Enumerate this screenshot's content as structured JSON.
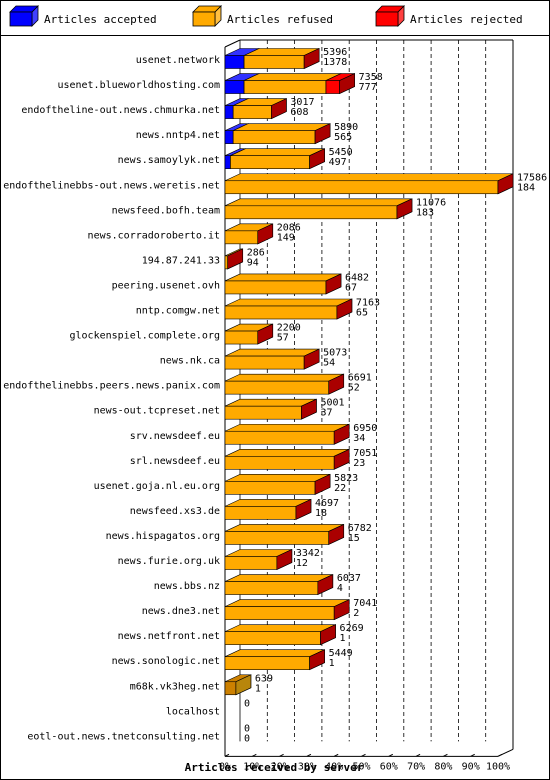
{
  "chart_data": {
    "type": "bar",
    "orientation": "horizontal",
    "stacked": true,
    "x_label": "Articles received by server",
    "x_ticks": [
      "0%",
      "10%",
      "20%",
      "30%",
      "40%",
      "50%",
      "60%",
      "70%",
      "80%",
      "90%",
      "100%"
    ],
    "legend": {
      "position": "top",
      "items": [
        {
          "name": "Articles accepted",
          "color": "#0000ff"
        },
        {
          "name": "Articles refused",
          "color": "#ffaa00"
        },
        {
          "name": "Articles rejected",
          "color": "#ff0000"
        }
      ]
    },
    "colors": {
      "accepted": "#0000ff",
      "refused": "#ffaa00",
      "rejected": "#ff0000",
      "mixed_top": "#cc8000",
      "mixed_side": "#b8860b",
      "rejected_dark": "#aa0000"
    },
    "servers": [
      {
        "name": "usenet.network",
        "total": "5396",
        "second": "1378",
        "accepted_pct": 7,
        "refused_pct": 22,
        "rejected_pct": 0
      },
      {
        "name": "usenet.blueworldhosting.com",
        "total": "7358",
        "second": "777",
        "accepted_pct": 7,
        "refused_pct": 30,
        "rejected_pct": 5
      },
      {
        "name": "endoftheline-out.news.chmurka.net",
        "total": "3017",
        "second": "608",
        "accepted_pct": 3,
        "refused_pct": 14,
        "rejected_pct": 0
      },
      {
        "name": "news.nntp4.net",
        "total": "5890",
        "second": "565",
        "accepted_pct": 3,
        "refused_pct": 30,
        "rejected_pct": 0
      },
      {
        "name": "news.samoylyk.net",
        "total": "5450",
        "second": "497",
        "accepted_pct": 2,
        "refused_pct": 29,
        "rejected_pct": 0
      },
      {
        "name": "endofthelinebbs-out.news.weretis.net",
        "total": "17586",
        "second": "184",
        "accepted_pct": 0,
        "refused_pct": 100,
        "rejected_pct": 0
      },
      {
        "name": "newsfeed.bofh.team",
        "total": "11076",
        "second": "183",
        "accepted_pct": 0,
        "refused_pct": 63,
        "rejected_pct": 0
      },
      {
        "name": "news.corradoroberto.it",
        "total": "2086",
        "second": "149",
        "accepted_pct": 0,
        "refused_pct": 12,
        "rejected_pct": 0
      },
      {
        "name": "194.87.241.33",
        "total": "286",
        "second": "94",
        "accepted_pct": 0,
        "refused_pct": 1,
        "rejected_pct": 0
      },
      {
        "name": "peering.usenet.ovh",
        "total": "6482",
        "second": "67",
        "accepted_pct": 0,
        "refused_pct": 37,
        "rejected_pct": 0
      },
      {
        "name": "nntp.comgw.net",
        "total": "7163",
        "second": "65",
        "accepted_pct": 0,
        "refused_pct": 41,
        "rejected_pct": 0
      },
      {
        "name": "glockenspiel.complete.org",
        "total": "2200",
        "second": "57",
        "accepted_pct": 0,
        "refused_pct": 12,
        "rejected_pct": 0
      },
      {
        "name": "news.nk.ca",
        "total": "5073",
        "second": "54",
        "accepted_pct": 0,
        "refused_pct": 29,
        "rejected_pct": 0
      },
      {
        "name": "endofthelinebbs.peers.news.panix.com",
        "total": "6691",
        "second": "52",
        "accepted_pct": 0,
        "refused_pct": 38,
        "rejected_pct": 0
      },
      {
        "name": "news-out.tcpreset.net",
        "total": "5001",
        "second": "37",
        "accepted_pct": 0,
        "refused_pct": 28,
        "rejected_pct": 0
      },
      {
        "name": "srv.newsdeef.eu",
        "total": "6950",
        "second": "34",
        "accepted_pct": 0,
        "refused_pct": 40,
        "rejected_pct": 0
      },
      {
        "name": "srl.newsdeef.eu",
        "total": "7051",
        "second": "23",
        "accepted_pct": 0,
        "refused_pct": 40,
        "rejected_pct": 0
      },
      {
        "name": "usenet.goja.nl.eu.org",
        "total": "5823",
        "second": "22",
        "accepted_pct": 0,
        "refused_pct": 33,
        "rejected_pct": 0
      },
      {
        "name": "newsfeed.xs3.de",
        "total": "4697",
        "second": "18",
        "accepted_pct": 0,
        "refused_pct": 26,
        "rejected_pct": 0
      },
      {
        "name": "news.hispagatos.org",
        "total": "6782",
        "second": "15",
        "accepted_pct": 0,
        "refused_pct": 38,
        "rejected_pct": 0
      },
      {
        "name": "news.furie.org.uk",
        "total": "3342",
        "second": "12",
        "accepted_pct": 0,
        "refused_pct": 19,
        "rejected_pct": 0
      },
      {
        "name": "news.bbs.nz",
        "total": "6037",
        "second": "4",
        "accepted_pct": 0,
        "refused_pct": 34,
        "rejected_pct": 0
      },
      {
        "name": "news.dne3.net",
        "total": "7041",
        "second": "2",
        "accepted_pct": 0,
        "refused_pct": 40,
        "rejected_pct": 0
      },
      {
        "name": "news.netfront.net",
        "total": "6269",
        "second": "1",
        "accepted_pct": 0,
        "refused_pct": 35,
        "rejected_pct": 0
      },
      {
        "name": "news.sonologic.net",
        "total": "5449",
        "second": "1",
        "accepted_pct": 0,
        "refused_pct": 31,
        "rejected_pct": 0
      },
      {
        "name": "m68k.vk3heg.net",
        "total": "639",
        "second": "1",
        "accepted_pct": 0,
        "refused_pct": 4,
        "rejected_pct": 0,
        "mixed": true
      },
      {
        "name": "localhost",
        "total": "0",
        "second": "",
        "accepted_pct": 0,
        "refused_pct": 0,
        "rejected_pct": 0
      },
      {
        "name": "eotl-out.news.tnetconsulting.net",
        "total": "0",
        "second": "0",
        "accepted_pct": 0,
        "refused_pct": 0,
        "rejected_pct": 0
      }
    ]
  }
}
